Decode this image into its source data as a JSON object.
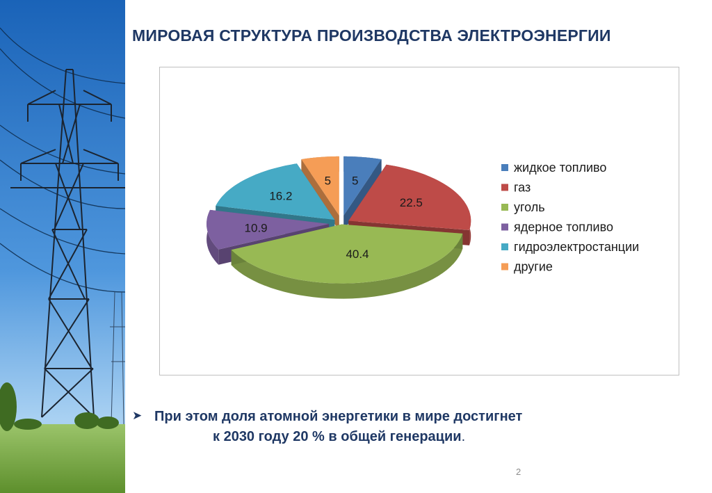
{
  "slide": {
    "title": "МИРОВАЯ СТРУКТУРА ПРОИЗВОДСТВА ЭЛЕКТРОЭНЕРГИИ",
    "note_line1": "При этом доля атомной энергетики в мире достигнет",
    "note_line2": "к 2030 году 20 % в общей генерации",
    "note_end": ".",
    "bullet_icon": "arrow-bullet-icon",
    "page_number": "2",
    "photo": "power-line-tower"
  },
  "chart_data": {
    "type": "pie",
    "three_d": true,
    "exploded": true,
    "legend_position": "right",
    "categories": [
      "жидкое топливо",
      "газ",
      "уголь",
      "ядерное топливо",
      "гидроэлектростанции",
      "другие"
    ],
    "values": [
      5,
      22.5,
      40.4,
      10.9,
      16.2,
      5
    ],
    "data_labels": [
      "5",
      "22.5",
      "40.4",
      "10.9",
      "16.2",
      "5"
    ],
    "colors": [
      "#4a7ebb",
      "#be4b48",
      "#98b954",
      "#7d60a0",
      "#46aac5",
      "#f59d56"
    ]
  }
}
